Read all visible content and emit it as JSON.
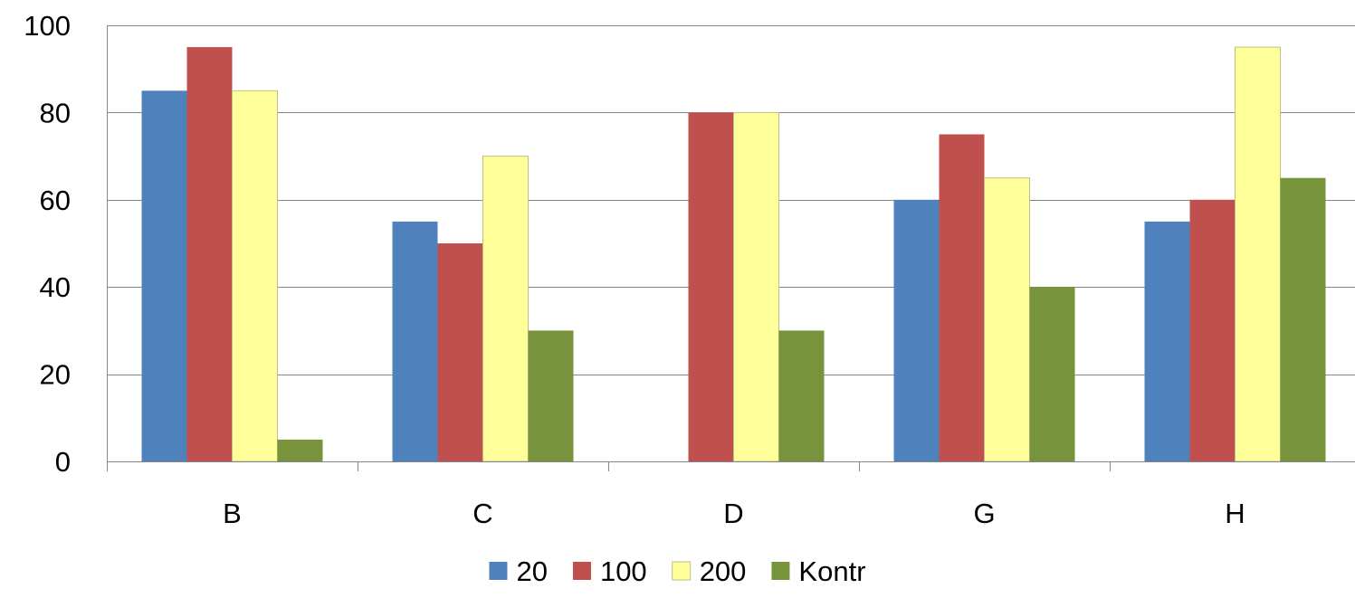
{
  "chart_data": {
    "type": "bar",
    "title": "",
    "xlabel": "",
    "ylabel": "",
    "categories": [
      "B",
      "C",
      "D",
      "G",
      "H"
    ],
    "ylim": [
      0,
      100
    ],
    "yticks": [
      0,
      20,
      40,
      60,
      80,
      100
    ],
    "grid": true,
    "legend_position": "bottom",
    "series": [
      {
        "name": "20",
        "color": "#4F81BD",
        "values": [
          85,
          55,
          0,
          60,
          55
        ]
      },
      {
        "name": "100",
        "color": "#C0504D",
        "values": [
          95,
          50,
          80,
          75,
          60
        ]
      },
      {
        "name": "200",
        "color": "#FFFF99",
        "values": [
          85,
          70,
          80,
          65,
          95
        ]
      },
      {
        "name": "Kontr",
        "color": "#77933C",
        "values": [
          5,
          30,
          30,
          40,
          65
        ]
      }
    ]
  }
}
